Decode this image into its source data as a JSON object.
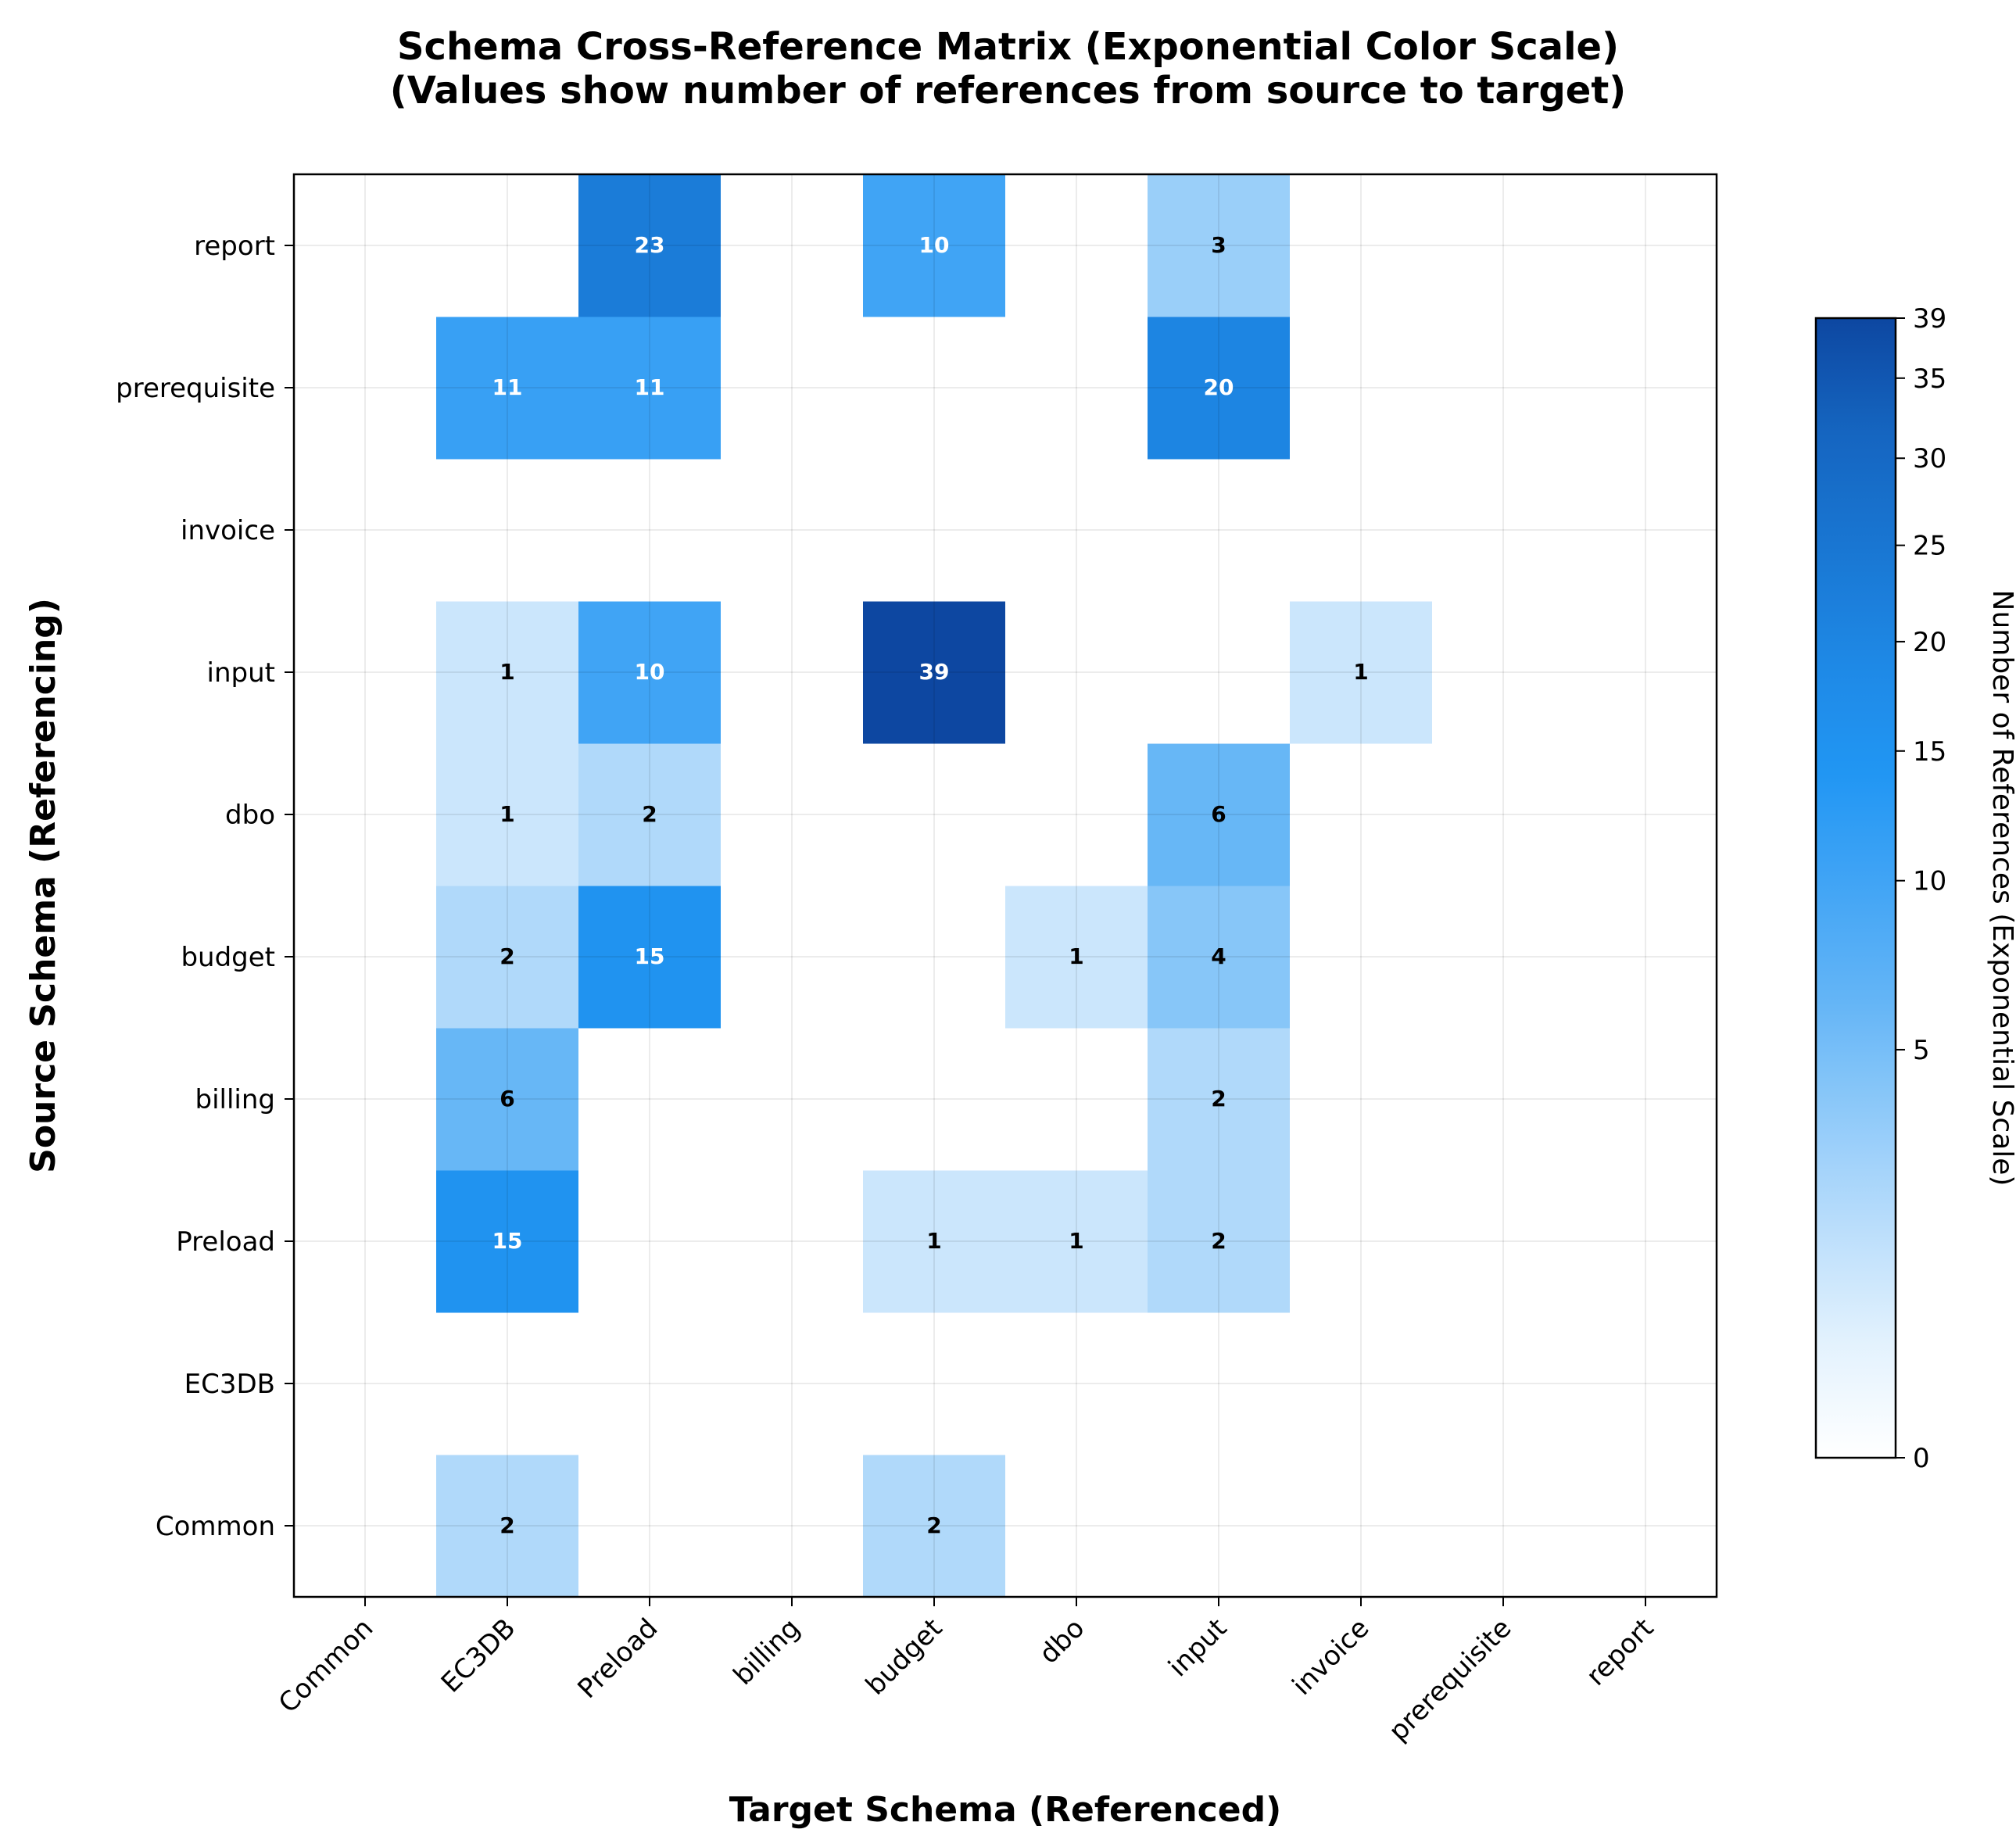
{
  "chart_data": {
    "type": "heatmap",
    "title": "Schema Cross-Reference Matrix (Exponential Color Scale)",
    "subtitle": "(Values show number of references from source to target)",
    "xlabel": "Target Schema (Referenced)",
    "ylabel": "Source Schema (Referencing)",
    "x_categories": [
      "Common",
      "EC3DB",
      "Preload",
      "billing",
      "budget",
      "dbo",
      "input",
      "invoice",
      "prerequisite",
      "report"
    ],
    "y_categories": [
      "Common",
      "EC3DB",
      "Preload",
      "billing",
      "budget",
      "dbo",
      "input",
      "invoice",
      "prerequisite",
      "report"
    ],
    "values": [
      [
        0,
        2,
        0,
        0,
        2,
        0,
        0,
        0,
        0,
        0
      ],
      [
        0,
        0,
        0,
        0,
        0,
        0,
        0,
        0,
        0,
        0
      ],
      [
        0,
        15,
        0,
        0,
        1,
        1,
        2,
        0,
        0,
        0
      ],
      [
        0,
        6,
        0,
        0,
        0,
        0,
        2,
        0,
        0,
        0
      ],
      [
        0,
        2,
        15,
        0,
        0,
        1,
        4,
        0,
        0,
        0
      ],
      [
        0,
        1,
        2,
        0,
        0,
        0,
        6,
        0,
        0,
        0
      ],
      [
        0,
        1,
        10,
        0,
        39,
        0,
        0,
        1,
        0,
        0
      ],
      [
        0,
        0,
        0,
        0,
        0,
        0,
        0,
        0,
        0,
        0
      ],
      [
        0,
        11,
        11,
        0,
        0,
        0,
        20,
        0,
        0,
        0
      ],
      [
        0,
        0,
        23,
        0,
        10,
        0,
        3,
        0,
        0,
        0
      ]
    ],
    "colorbar": {
      "label": "Number of References (Exponential Scale)",
      "ticks": [
        0,
        5,
        10,
        15,
        20,
        25,
        30,
        35,
        39
      ],
      "range": [
        0,
        39
      ],
      "colors": [
        "#ffffff",
        "#e3f2fd",
        "#bbdefb",
        "#90caf9",
        "#64b5f6",
        "#42a5f5",
        "#2196f3",
        "#1e88e5",
        "#1976d2",
        "#1565c0",
        "#0d47a1"
      ]
    },
    "grid": true
  }
}
